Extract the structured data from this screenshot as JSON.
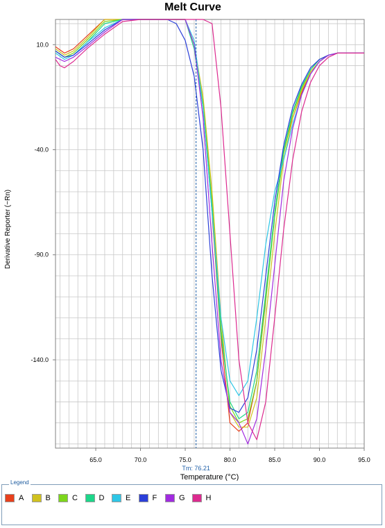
{
  "chart_data": {
    "type": "line",
    "title": "Melt Curve",
    "xlabel": "Temperature (°C)",
    "ylabel": "Derivative Reporter (−Rn)",
    "xlim": [
      60.5,
      95.0
    ],
    "ylim": [
      -182,
      22
    ],
    "x_ticks": [
      65.0,
      70.0,
      75.0,
      80.0,
      85.0,
      90.0,
      95.0
    ],
    "x_tick_labels": [
      "65.0",
      "70.0",
      "75.0",
      "80.0",
      "85.0",
      "90.0",
      "95.0"
    ],
    "y_ticks": [
      10.0,
      -40.0,
      -90.0,
      -140.0
    ],
    "y_tick_labels": [
      "10.0",
      "-40.0",
      "-90.0",
      "-140.0"
    ],
    "grid": true,
    "tm_marker": {
      "x": 76.21,
      "label": "Tm: 76.21"
    },
    "series": [
      {
        "name": "A",
        "color": "#e8401c",
        "points": [
          [
            60.5,
            9
          ],
          [
            61.5,
            6
          ],
          [
            62.5,
            8
          ],
          [
            64,
            14
          ],
          [
            66,
            23
          ],
          [
            68,
            31
          ],
          [
            70,
            33
          ],
          [
            72,
            32
          ],
          [
            73,
            32
          ],
          [
            74,
            30
          ],
          [
            75,
            25
          ],
          [
            76,
            10
          ],
          [
            77,
            -20
          ],
          [
            78,
            -70
          ],
          [
            79,
            -130
          ],
          [
            80,
            -170
          ],
          [
            81,
            -174
          ],
          [
            82,
            -170
          ],
          [
            83,
            -150
          ],
          [
            84,
            -110
          ],
          [
            85,
            -70
          ],
          [
            86,
            -40
          ],
          [
            87,
            -25
          ],
          [
            88,
            -13
          ],
          [
            89,
            -3
          ],
          [
            90,
            2
          ],
          [
            91,
            5
          ],
          [
            92,
            6
          ],
          [
            93,
            6
          ],
          [
            94,
            6
          ],
          [
            95,
            6
          ]
        ]
      },
      {
        "name": "B",
        "color": "#d0c11f",
        "points": [
          [
            60.5,
            8
          ],
          [
            61.5,
            5
          ],
          [
            62.5,
            7
          ],
          [
            64,
            13
          ],
          [
            66,
            22
          ],
          [
            68,
            30
          ],
          [
            70,
            32
          ],
          [
            72,
            32
          ],
          [
            73,
            32
          ],
          [
            74,
            29
          ],
          [
            75,
            24
          ],
          [
            76,
            10
          ],
          [
            77,
            -15
          ],
          [
            78,
            -60
          ],
          [
            79,
            -120
          ],
          [
            80,
            -165
          ],
          [
            81,
            -172
          ],
          [
            82,
            -172
          ],
          [
            83,
            -158
          ],
          [
            84,
            -120
          ],
          [
            85,
            -80
          ],
          [
            86,
            -45
          ],
          [
            87,
            -25
          ],
          [
            88,
            -12
          ],
          [
            89,
            -3
          ],
          [
            90,
            2
          ],
          [
            91,
            5
          ],
          [
            92,
            6
          ],
          [
            93,
            6
          ],
          [
            94,
            6
          ],
          [
            95,
            6
          ]
        ]
      },
      {
        "name": "C",
        "color": "#7dd61c",
        "points": [
          [
            60.5,
            7
          ],
          [
            61.5,
            4
          ],
          [
            62.5,
            6
          ],
          [
            64,
            12
          ],
          [
            66,
            21
          ],
          [
            68,
            28
          ],
          [
            70,
            30
          ],
          [
            72,
            31
          ],
          [
            73,
            31
          ],
          [
            74,
            29
          ],
          [
            75,
            24
          ],
          [
            76,
            10
          ],
          [
            77,
            -18
          ],
          [
            78,
            -65
          ],
          [
            79,
            -125
          ],
          [
            80,
            -162
          ],
          [
            81,
            -170
          ],
          [
            82,
            -168
          ],
          [
            83,
            -150
          ],
          [
            84,
            -112
          ],
          [
            85,
            -72
          ],
          [
            86,
            -42
          ],
          [
            87,
            -23
          ],
          [
            88,
            -11
          ],
          [
            89,
            -2
          ],
          [
            90,
            3
          ],
          [
            91,
            5
          ],
          [
            92,
            6
          ],
          [
            93,
            6
          ],
          [
            94,
            6
          ],
          [
            95,
            6
          ]
        ]
      },
      {
        "name": "D",
        "color": "#1dd68a",
        "points": [
          [
            60.5,
            7
          ],
          [
            61.5,
            4
          ],
          [
            62.5,
            5
          ],
          [
            64,
            11
          ],
          [
            66,
            20
          ],
          [
            68,
            27
          ],
          [
            70,
            29
          ],
          [
            72,
            30
          ],
          [
            73,
            30
          ],
          [
            74,
            28
          ],
          [
            75,
            22
          ],
          [
            76,
            8
          ],
          [
            77,
            -20
          ],
          [
            78,
            -68
          ],
          [
            79,
            -128
          ],
          [
            80,
            -160
          ],
          [
            81,
            -168
          ],
          [
            82,
            -165
          ],
          [
            83,
            -145
          ],
          [
            84,
            -108
          ],
          [
            85,
            -70
          ],
          [
            86,
            -40
          ],
          [
            87,
            -22
          ],
          [
            88,
            -10
          ],
          [
            89,
            -2
          ],
          [
            90,
            3
          ],
          [
            91,
            5
          ],
          [
            92,
            6
          ],
          [
            93,
            6
          ],
          [
            94,
            6
          ],
          [
            95,
            6
          ]
        ]
      },
      {
        "name": "E",
        "color": "#2ec6e6",
        "points": [
          [
            60.5,
            6
          ],
          [
            61.5,
            3
          ],
          [
            62.5,
            5
          ],
          [
            64,
            11
          ],
          [
            66,
            18
          ],
          [
            68,
            25
          ],
          [
            70,
            30
          ],
          [
            72,
            34
          ],
          [
            73,
            37
          ],
          [
            74,
            39
          ],
          [
            75,
            32
          ],
          [
            76,
            12
          ],
          [
            77,
            -20
          ],
          [
            78,
            -70
          ],
          [
            79,
            -120
          ],
          [
            80,
            -150
          ],
          [
            81,
            -157
          ],
          [
            82,
            -150
          ],
          [
            83,
            -120
          ],
          [
            84,
            -85
          ],
          [
            85,
            -60
          ],
          [
            86,
            -45
          ],
          [
            87,
            -28
          ],
          [
            88,
            -14
          ],
          [
            89,
            -4
          ],
          [
            90,
            2
          ],
          [
            91,
            5
          ],
          [
            92,
            6
          ],
          [
            93,
            6
          ],
          [
            94,
            6
          ],
          [
            95,
            6
          ]
        ]
      },
      {
        "name": "F",
        "color": "#2b3fd8",
        "points": [
          [
            60.5,
            7
          ],
          [
            61.5,
            4
          ],
          [
            62.5,
            5
          ],
          [
            64,
            10
          ],
          [
            66,
            17
          ],
          [
            68,
            25
          ],
          [
            69,
            30
          ],
          [
            70,
            31
          ],
          [
            71,
            29
          ],
          [
            72,
            26
          ],
          [
            73,
            24
          ],
          [
            74,
            20
          ],
          [
            75,
            12
          ],
          [
            76,
            -5
          ],
          [
            77,
            -40
          ],
          [
            78,
            -100
          ],
          [
            79,
            -145
          ],
          [
            80,
            -163
          ],
          [
            81,
            -165
          ],
          [
            82,
            -158
          ],
          [
            83,
            -135
          ],
          [
            84,
            -100
          ],
          [
            85,
            -65
          ],
          [
            86,
            -38
          ],
          [
            87,
            -20
          ],
          [
            88,
            -9
          ],
          [
            89,
            -1
          ],
          [
            90,
            3
          ],
          [
            91,
            5
          ],
          [
            92,
            6
          ],
          [
            93,
            6
          ],
          [
            94,
            6
          ],
          [
            95,
            6
          ]
        ]
      },
      {
        "name": "G",
        "color": "#a12be0",
        "points": [
          [
            60.5,
            4
          ],
          [
            61.5,
            2
          ],
          [
            62.5,
            4
          ],
          [
            64,
            9
          ],
          [
            66,
            16
          ],
          [
            68,
            22
          ],
          [
            70,
            27
          ],
          [
            72,
            29
          ],
          [
            73,
            30
          ],
          [
            74,
            31
          ],
          [
            75,
            26
          ],
          [
            76,
            10
          ],
          [
            77,
            -25
          ],
          [
            78,
            -85
          ],
          [
            79,
            -140
          ],
          [
            80,
            -165
          ],
          [
            81,
            -170
          ],
          [
            82,
            -180
          ],
          [
            83,
            -168
          ],
          [
            84,
            -135
          ],
          [
            85,
            -95
          ],
          [
            86,
            -55
          ],
          [
            87,
            -30
          ],
          [
            88,
            -14
          ],
          [
            89,
            -4
          ],
          [
            90,
            2
          ],
          [
            91,
            5
          ],
          [
            92,
            6
          ],
          [
            93,
            6
          ],
          [
            94,
            6
          ],
          [
            95,
            6
          ]
        ]
      },
      {
        "name": "H",
        "color": "#dc2a8f",
        "points": [
          [
            60.5,
            3
          ],
          [
            61,
            0
          ],
          [
            61.5,
            -1
          ],
          [
            62.5,
            2
          ],
          [
            64,
            8
          ],
          [
            66,
            15
          ],
          [
            68,
            21
          ],
          [
            70,
            25
          ],
          [
            72,
            30
          ],
          [
            73,
            34
          ],
          [
            74,
            39
          ],
          [
            75,
            44
          ],
          [
            76,
            46
          ],
          [
            77,
            40
          ],
          [
            78,
            20
          ],
          [
            79,
            -20
          ],
          [
            80,
            -80
          ],
          [
            81,
            -140
          ],
          [
            82,
            -170
          ],
          [
            83,
            -178
          ],
          [
            84,
            -160
          ],
          [
            85,
            -120
          ],
          [
            86,
            -78
          ],
          [
            87,
            -45
          ],
          [
            88,
            -22
          ],
          [
            89,
            -8
          ],
          [
            90,
            0
          ],
          [
            91,
            4
          ],
          [
            92,
            6
          ],
          [
            93,
            6
          ],
          [
            94,
            6
          ],
          [
            95,
            6
          ]
        ]
      }
    ]
  },
  "legend": {
    "title": "Legend",
    "items": [
      {
        "label": "A",
        "color": "#e8401c"
      },
      {
        "label": "B",
        "color": "#d0c11f"
      },
      {
        "label": "C",
        "color": "#7dd61c"
      },
      {
        "label": "D",
        "color": "#1dd68a"
      },
      {
        "label": "E",
        "color": "#2ec6e6"
      },
      {
        "label": "F",
        "color": "#2b3fd8"
      },
      {
        "label": "G",
        "color": "#a12be0"
      },
      {
        "label": "H",
        "color": "#dc2a8f"
      }
    ]
  }
}
